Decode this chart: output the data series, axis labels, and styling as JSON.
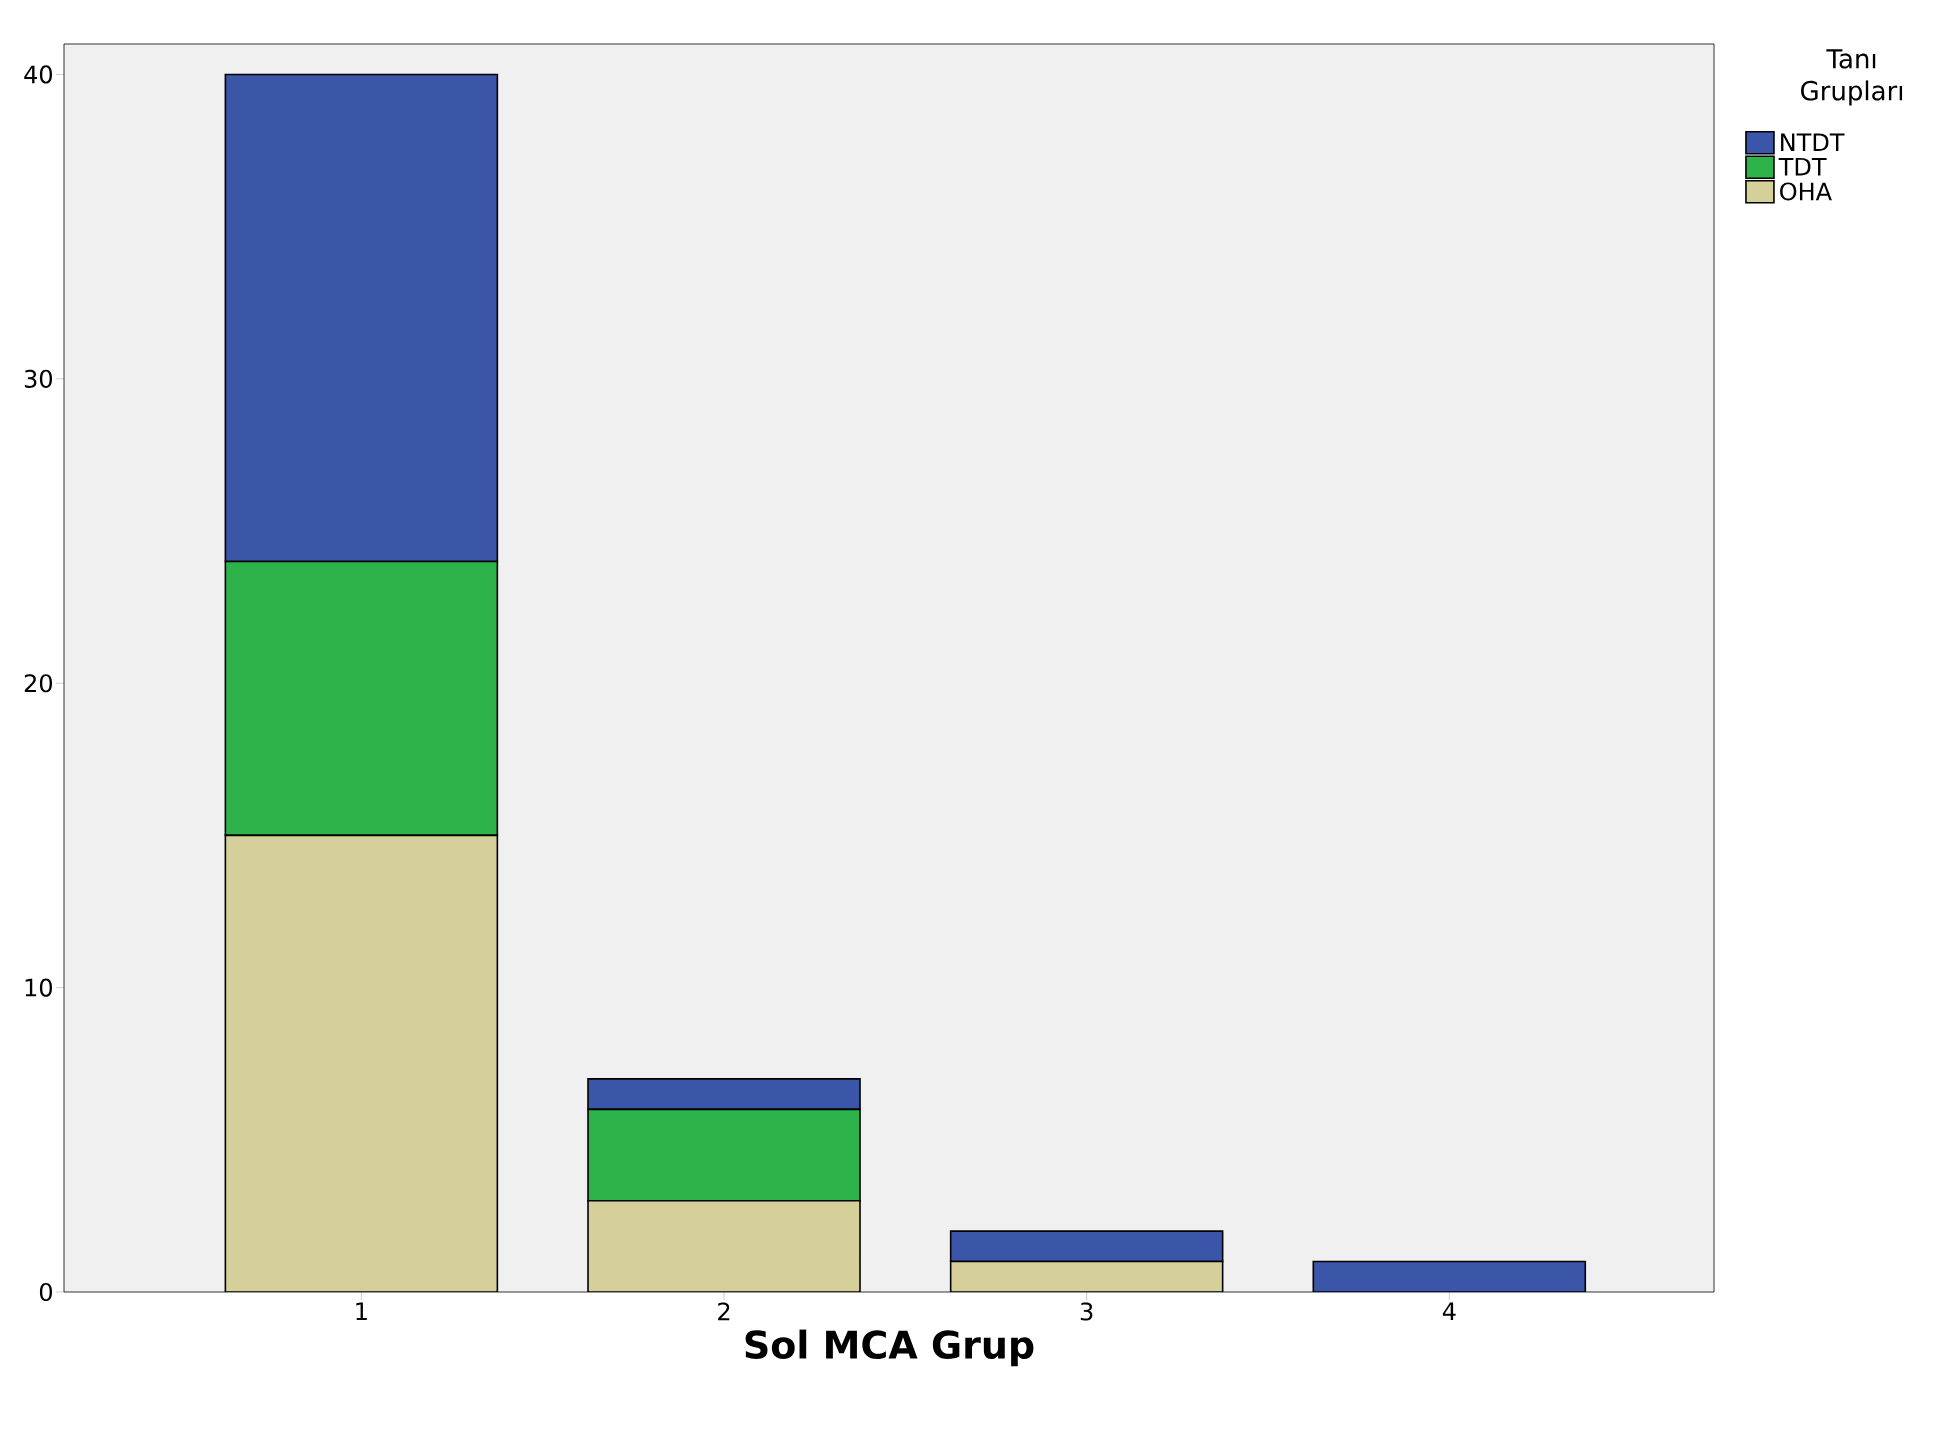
{
  "chart_data": {
    "type": "bar",
    "stacked": true,
    "xlabel": "Sol MCA Grup",
    "legend_title": "Tanı Grupları",
    "legend": "top right",
    "categories": [
      "1",
      "2",
      "3",
      "4"
    ],
    "series": [
      {
        "name": "OHA",
        "color": "#d5cf9a",
        "values": [
          15,
          3,
          1,
          0
        ]
      },
      {
        "name": "TDT",
        "color": "#2db34a",
        "values": [
          9,
          3,
          0,
          0
        ]
      },
      {
        "name": "NTDT",
        "color": "#3b55a8",
        "values": [
          16,
          1,
          1,
          1
        ]
      }
    ],
    "ylim": [
      0,
      41
    ],
    "yticks": [
      0,
      10,
      20,
      30,
      40
    ]
  }
}
